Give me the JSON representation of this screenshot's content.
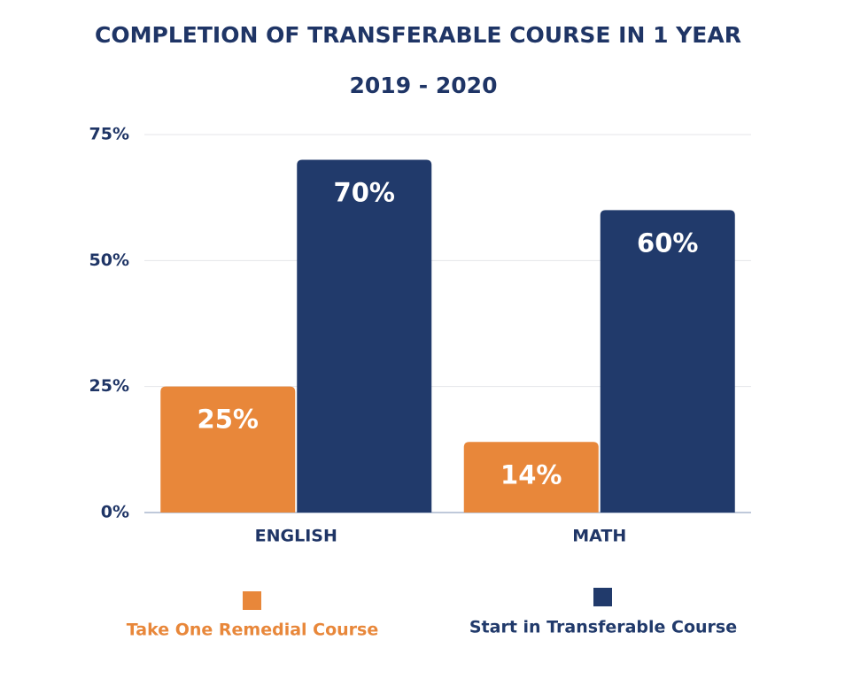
{
  "chart_data": {
    "type": "bar",
    "title": "COMPLETION OF TRANSFERABLE COURSE IN 1 YEAR",
    "subtitle": "2019 - 2020",
    "categories": [
      "ENGLISH",
      "MATH"
    ],
    "series": [
      {
        "name": "Take One Remedial Course",
        "color": "#e8873a",
        "values": [
          25,
          14
        ],
        "value_labels": [
          "25%",
          "14%"
        ]
      },
      {
        "name": "Start in Transferable Course",
        "color": "#213a6b",
        "values": [
          70,
          60
        ],
        "value_labels": [
          "70%",
          "60%"
        ]
      }
    ],
    "ylim": [
      0,
      75
    ],
    "yticks": [
      {
        "value": 0,
        "label": "0%"
      },
      {
        "value": 25,
        "label": "25%"
      },
      {
        "value": 50,
        "label": "50%"
      },
      {
        "value": 75,
        "label": "75%"
      }
    ],
    "grid": true
  }
}
